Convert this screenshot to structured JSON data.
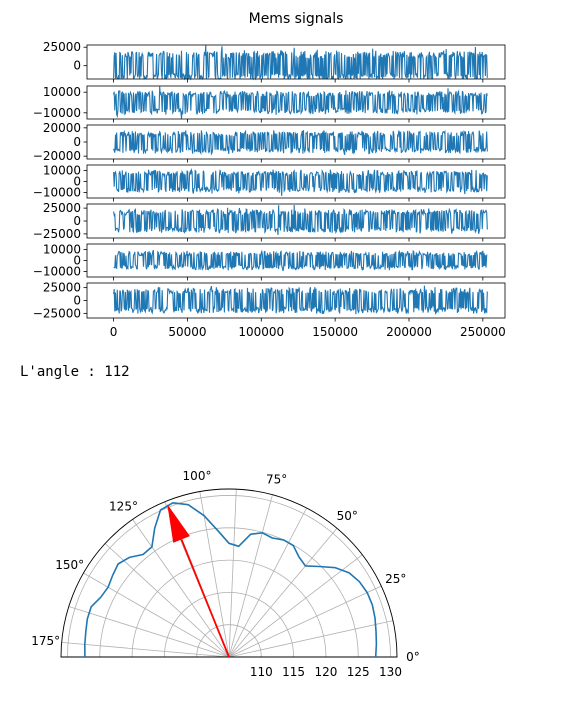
{
  "chart_data": [
    {
      "type": "line",
      "title": "Mems signals",
      "x_range": [
        0,
        253000
      ],
      "x_ticks": [
        0,
        50000,
        100000,
        150000,
        200000,
        250000
      ],
      "x_tick_labels": [
        "0",
        "50000",
        "100000",
        "150000",
        "200000",
        "250000"
      ],
      "xlim": [
        -18000,
        265000
      ],
      "series_color": "#1f77b4",
      "series": [
        {
          "amplitude": 22000,
          "ylim": [
            -18000,
            28000
          ],
          "y_ticks": [
            0,
            25000
          ],
          "y_tick_labels": [
            "0",
            "25000"
          ]
        },
        {
          "amplitude": 12000,
          "ylim": [
            -16000,
            16000
          ],
          "y_ticks": [
            -10000,
            10000
          ],
          "y_tick_labels": [
            "−10000",
            "10000"
          ]
        },
        {
          "amplitude": 17000,
          "ylim": [
            -24000,
            24000
          ],
          "y_ticks": [
            -20000,
            0,
            20000
          ],
          "y_tick_labels": [
            "−20000",
            "0",
            "20000"
          ]
        },
        {
          "amplitude": 11000,
          "ylim": [
            -15000,
            15000
          ],
          "y_ticks": [
            -10000,
            0,
            10000
          ],
          "y_tick_labels": [
            "−10000",
            "0",
            "10000"
          ]
        },
        {
          "amplitude": 25000,
          "ylim": [
            -33000,
            33000
          ],
          "y_ticks": [
            -25000,
            0,
            25000
          ],
          "y_tick_labels": [
            "−25000",
            "0",
            "25000"
          ]
        },
        {
          "amplitude": 9000,
          "ylim": [
            -15000,
            15000
          ],
          "y_ticks": [
            -10000,
            0,
            10000
          ],
          "y_tick_labels": [
            "−10000",
            "0",
            "10000"
          ]
        },
        {
          "amplitude": 27000,
          "ylim": [
            -34000,
            34000
          ],
          "y_ticks": [
            -25000,
            0,
            25000
          ],
          "y_tick_labels": [
            "−25000",
            "0",
            "25000"
          ]
        }
      ]
    },
    {
      "type": "polar",
      "theta_range_deg": [
        0,
        180
      ],
      "r_range": [
        105,
        131
      ],
      "r_ticks": [
        110,
        115,
        120,
        125,
        130
      ],
      "r_tick_labels": [
        "110",
        "115",
        "120",
        "125",
        "130"
      ],
      "theta_ticks": [
        0,
        25,
        50,
        75,
        100,
        125,
        150,
        175
      ],
      "theta_tick_labels": [
        "0°",
        "25°",
        "50°",
        "75°",
        "100°",
        "125°",
        "150°",
        "175°"
      ],
      "curve_color": "#1f77b4",
      "arrow_color": "#ff0000",
      "arrow_angle_deg": 112,
      "arrow_r": 130.5,
      "curve": {
        "theta": [
          0,
          5,
          10,
          15,
          20,
          25,
          30,
          35,
          40,
          45,
          50,
          55,
          60,
          65,
          70,
          75,
          80,
          85,
          90,
          95,
          100,
          105,
          110,
          115,
          120,
          125,
          130,
          135,
          140,
          145,
          150,
          155,
          160,
          165,
          170,
          175,
          180
        ],
        "r": [
          127.7,
          127.9,
          128.1,
          128.4,
          128.6,
          128.6,
          128.3,
          127.7,
          126.5,
          124.8,
          123.4,
          123.9,
          124.9,
          125.0,
          124.6,
          124.9,
          124.3,
          122.2,
          122.6,
          124.6,
          127.2,
          129.4,
          130.4,
          130.1,
          128.0,
          125.8,
          125.7,
          126.8,
          127.4,
          127.0,
          126.6,
          126.9,
          127.7,
          127.7,
          127.5,
          127.4,
          127.3
        ]
      }
    }
  ],
  "output": {
    "angle_line": "L'angle : 112"
  }
}
